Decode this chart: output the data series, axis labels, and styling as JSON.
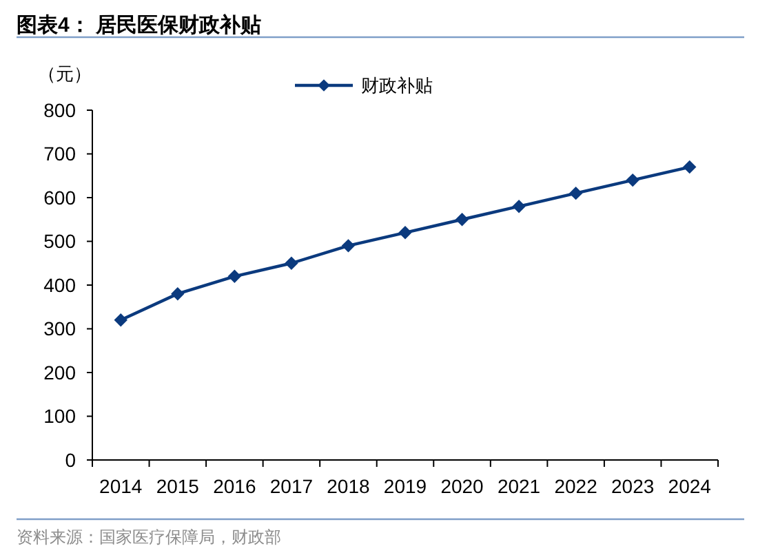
{
  "chart_data": {
    "type": "line",
    "title": "图表4： 居民医保财政补贴",
    "ylabel": "（元）",
    "annotations": [
      "资料来源：国家医疗保障局，财政部"
    ],
    "categories": [
      "2014",
      "2015",
      "2016",
      "2017",
      "2018",
      "2019",
      "2020",
      "2021",
      "2022",
      "2023",
      "2024"
    ],
    "series": [
      {
        "name": "财政补贴",
        "color": "#0b3a7e",
        "values": [
          320,
          380,
          420,
          450,
          490,
          520,
          550,
          580,
          610,
          640,
          670
        ]
      }
    ],
    "ylim": [
      0,
      800
    ],
    "yticks": [
      0,
      100,
      200,
      300,
      400,
      500,
      600,
      700,
      800
    ],
    "legend": "top",
    "marker": "diamond",
    "line_style": "solid"
  }
}
